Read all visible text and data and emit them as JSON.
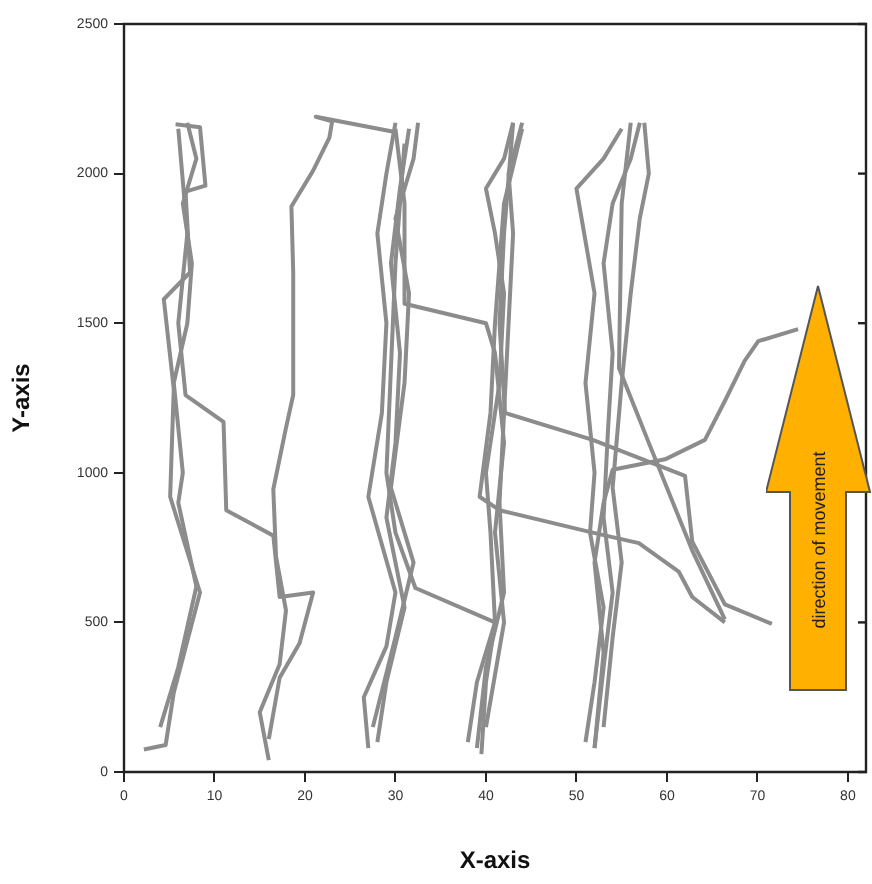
{
  "chart_data": {
    "type": "line",
    "xlabel": "X-axis",
    "ylabel": "Y-axis",
    "xlim": [
      0,
      82
    ],
    "ylim": [
      0,
      2500
    ],
    "xticks": [
      0,
      10,
      20,
      30,
      40,
      50,
      60,
      70,
      80
    ],
    "yticks": [
      0,
      500,
      1000,
      1500,
      2000,
      2500
    ],
    "grid": false,
    "marker": "none",
    "line_style": "solid",
    "annotations": [
      "direction of movement"
    ],
    "series": [
      {
        "color": "#8c8c8c",
        "x": [
          2.2,
          4.6,
          5.5,
          8.4,
          5.1,
          5.5,
          4.4,
          7.3,
          6.8,
          9,
          8.4,
          5.7
        ],
        "values": [
          75,
          90,
          265,
          600,
          920,
          1280,
          1580,
          1670,
          1940,
          1960,
          2155,
          2165
        ]
      },
      {
        "color": "#8c8c8c",
        "x": [
          4,
          6,
          8,
          6,
          6.5,
          5.5,
          7,
          7.5,
          6.5,
          8,
          7
        ],
        "values": [
          150,
          350,
          620,
          900,
          1000,
          1300,
          1500,
          1700,
          1900,
          2050,
          2170
        ]
      },
      {
        "color": "#8c8c8c",
        "x": [
          16,
          17.2,
          19.4,
          20.9,
          17.2,
          16.5,
          11.3,
          11,
          6.8,
          6,
          7,
          6
        ],
        "values": [
          110,
          315,
          430,
          600,
          585,
          790,
          875,
          1170,
          1260,
          1500,
          1800,
          2150
        ]
      },
      {
        "color": "#8c8c8c",
        "x": [
          16,
          15,
          17.2,
          17.9,
          16.8,
          16.5,
          17.9,
          18.7,
          18.7,
          18.5,
          20.9,
          22.7,
          23,
          21.2,
          29.8
        ],
        "values": [
          40,
          200,
          360,
          540,
          720,
          945,
          1150,
          1260,
          1670,
          1890,
          2010,
          2120,
          2175,
          2190,
          2140
        ]
      },
      {
        "color": "#8c8c8c",
        "x": [
          27,
          26.5,
          29,
          30,
          27,
          28.5,
          29,
          28,
          29,
          30
        ],
        "values": [
          80,
          250,
          420,
          600,
          920,
          1200,
          1500,
          1800,
          2000,
          2170
        ]
      },
      {
        "color": "#8c8c8c",
        "x": [
          28,
          29,
          31,
          29,
          30,
          30.5,
          29.5,
          30.5,
          31.5
        ],
        "values": [
          100,
          300,
          550,
          850,
          1100,
          1400,
          1700,
          1950,
          2150
        ]
      },
      {
        "color": "#8c8c8c",
        "x": [
          27.5,
          30,
          32,
          29.5,
          31,
          31.5,
          30,
          32,
          32.5
        ],
        "values": [
          150,
          450,
          700,
          950,
          1300,
          1600,
          1850,
          2050,
          2170
        ]
      },
      {
        "color": "#8c8c8c",
        "x": [
          30,
          31,
          31,
          40,
          41,
          42,
          41,
          42,
          40
        ],
        "values": [
          2150,
          1900,
          1565,
          1500,
          1400,
          1100,
          800,
          500,
          150
        ]
      },
      {
        "color": "#8c8c8c",
        "x": [
          31,
          30,
          29,
          30,
          32.2,
          41,
          40,
          39.5
        ],
        "values": [
          2100,
          1700,
          1000,
          800,
          615,
          500,
          300,
          60
        ]
      },
      {
        "color": "#8c8c8c",
        "x": [
          38,
          39,
          41,
          40.5,
          40,
          41.5,
          42,
          41,
          40,
          42,
          43
        ],
        "values": [
          100,
          300,
          500,
          800,
          1000,
          1300,
          1600,
          1800,
          1950,
          2050,
          2170
        ]
      },
      {
        "color": "#8c8c8c",
        "x": [
          39,
          40,
          42,
          41.5,
          42,
          42.5,
          43,
          42.5,
          44
        ],
        "values": [
          80,
          350,
          600,
          900,
          1200,
          1500,
          1800,
          2000,
          2170
        ]
      },
      {
        "color": "#8c8c8c",
        "x": [
          43,
          42,
          41.5,
          42.1,
          51.8,
          62,
          62.8,
          66.4,
          71.6
        ],
        "values": [
          2170,
          1800,
          1500,
          1200,
          1110,
          990,
          770,
          560,
          495
        ]
      },
      {
        "color": "#8c8c8c",
        "x": [
          44,
          42,
          41,
          40.5,
          39.3,
          41.5,
          51.8,
          56.9,
          61.3,
          62.8,
          66.4
        ],
        "values": [
          2150,
          1900,
          1500,
          1200,
          920,
          875,
          800,
          765,
          670,
          585,
          500
        ]
      },
      {
        "color": "#8c8c8c",
        "x": [
          51,
          52,
          53,
          51.5,
          52,
          51,
          52,
          50,
          53,
          55
        ],
        "values": [
          100,
          300,
          550,
          800,
          1000,
          1300,
          1600,
          1950,
          2050,
          2150
        ]
      },
      {
        "color": "#8c8c8c",
        "x": [
          52,
          53,
          54,
          53,
          53.5,
          54,
          53,
          54,
          56,
          57
        ],
        "values": [
          80,
          350,
          600,
          850,
          1150,
          1400,
          1700,
          1900,
          2050,
          2170
        ]
      },
      {
        "color": "#8c8c8c",
        "x": [
          53,
          54,
          55,
          54,
          55,
          56,
          57,
          58,
          57.5
        ],
        "values": [
          150,
          450,
          700,
          950,
          1300,
          1600,
          1850,
          2000,
          2170
        ]
      },
      {
        "color": "#8c8c8c",
        "x": [
          52,
          53,
          52,
          53,
          54,
          59.8,
          64.2,
          66.4,
          68.6,
          70.1,
          74.5
        ],
        "values": [
          80,
          400,
          700,
          900,
          1010,
          1045,
          1110,
          1240,
          1375,
          1440,
          1480
        ]
      },
      {
        "color": "#8c8c8c",
        "x": [
          56,
          55,
          54.7,
          58,
          62.8,
          66.4
        ],
        "values": [
          2170,
          1900,
          1350,
          1100,
          740,
          510
        ]
      }
    ]
  }
}
